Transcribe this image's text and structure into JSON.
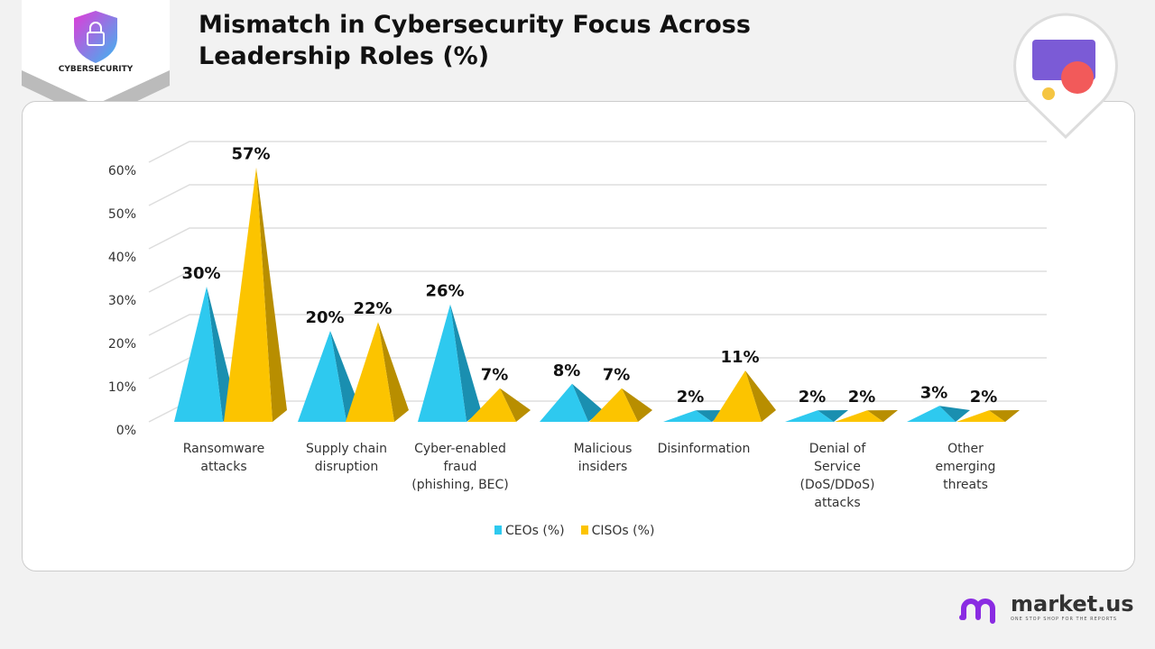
{
  "header": {
    "title_line1": "Mismatch in Cybersecurity Focus Across",
    "title_line2": "Leadership Roles (%)",
    "badge": "CYBERSECURITY"
  },
  "brand": {
    "name": "market.us",
    "tagline": "ONE STOP SHOP FOR THE REPORTS"
  },
  "chart_data": {
    "type": "bar",
    "style": "3d-pyramid",
    "title": "Mismatch in Cybersecurity Focus Across Leadership Roles (%)",
    "categories": [
      [
        "Ransomware",
        "attacks"
      ],
      [
        "Supply chain",
        "disruption"
      ],
      [
        "Cyber-enabled",
        "fraud",
        "(phishing, BEC)"
      ],
      [
        "Malicious",
        "insiders"
      ],
      [
        "Disinformation"
      ],
      [
        "Denial of",
        "Service",
        "(DoS/DDoS)",
        "attacks"
      ],
      [
        "Other",
        "emerging",
        "threats"
      ]
    ],
    "series": [
      {
        "name": "CEOs (%)",
        "color": "#2ec9ef",
        "values": [
          30,
          20,
          26,
          8,
          2,
          2,
          3
        ]
      },
      {
        "name": "CISOs (%)",
        "color": "#fcc400",
        "values": [
          57,
          22,
          7,
          7,
          11,
          2,
          2
        ]
      }
    ],
    "yticks": [
      "0%",
      "10%",
      "20%",
      "30%",
      "40%",
      "50%",
      "60%"
    ],
    "ylim": [
      0,
      60
    ],
    "grid": true,
    "legend": "bottom"
  }
}
